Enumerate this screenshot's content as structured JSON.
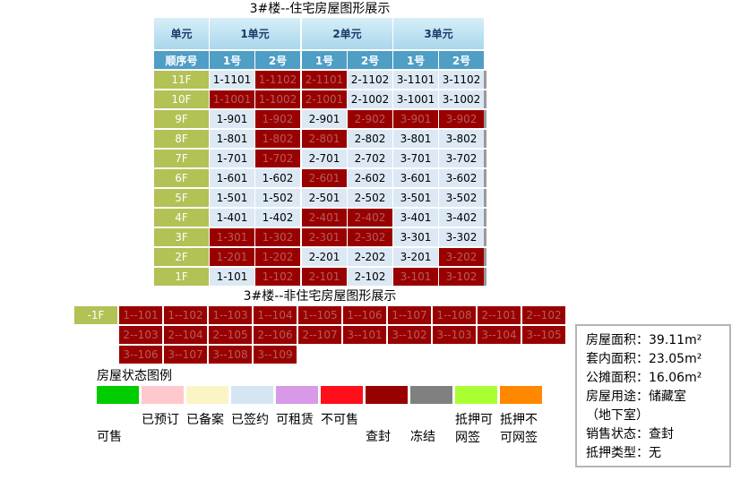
{
  "residential": {
    "title": "3#楼--住宅房屋图形展示",
    "unit_header": "单元",
    "seq_header": "顺序号",
    "units": [
      "1单元",
      "2单元",
      "3单元"
    ],
    "nums": [
      "1号",
      "2号",
      "1号",
      "2号",
      "1号",
      "2号"
    ],
    "rows": [
      {
        "floor": "11F",
        "rooms": [
          [
            "1-1101",
            "sold"
          ],
          [
            "1-1102",
            "seal"
          ],
          [
            "2-1101",
            "seal"
          ],
          [
            "2-1102",
            "sold"
          ],
          [
            "3-1101",
            "sold"
          ],
          [
            "3-1102",
            "sold"
          ]
        ]
      },
      {
        "floor": "10F",
        "rooms": [
          [
            "1-1001",
            "seal"
          ],
          [
            "1-1002",
            "seal"
          ],
          [
            "2-1001",
            "seal"
          ],
          [
            "2-1002",
            "sold"
          ],
          [
            "3-1001",
            "sold"
          ],
          [
            "3-1002",
            "sold"
          ]
        ]
      },
      {
        "floor": "9F",
        "rooms": [
          [
            "1-901",
            "sold"
          ],
          [
            "1-902",
            "seal"
          ],
          [
            "2-901",
            "sold"
          ],
          [
            "2-902",
            "seal"
          ],
          [
            "3-901",
            "seal"
          ],
          [
            "3-902",
            "seal"
          ]
        ]
      },
      {
        "floor": "8F",
        "rooms": [
          [
            "1-801",
            "sold"
          ],
          [
            "1-802",
            "seal"
          ],
          [
            "2-801",
            "seal"
          ],
          [
            "2-802",
            "sold"
          ],
          [
            "3-801",
            "sold"
          ],
          [
            "3-802",
            "sold"
          ]
        ]
      },
      {
        "floor": "7F",
        "rooms": [
          [
            "1-701",
            "sold"
          ],
          [
            "1-702",
            "seal"
          ],
          [
            "2-701",
            "sold"
          ],
          [
            "2-702",
            "sold"
          ],
          [
            "3-701",
            "sold"
          ],
          [
            "3-702",
            "sold"
          ]
        ]
      },
      {
        "floor": "6F",
        "rooms": [
          [
            "1-601",
            "sold"
          ],
          [
            "1-602",
            "sold"
          ],
          [
            "2-601",
            "seal"
          ],
          [
            "2-602",
            "sold"
          ],
          [
            "3-601",
            "sold"
          ],
          [
            "3-602",
            "sold"
          ]
        ]
      },
      {
        "floor": "5F",
        "rooms": [
          [
            "1-501",
            "sold"
          ],
          [
            "1-502",
            "sold"
          ],
          [
            "2-501",
            "sold"
          ],
          [
            "2-502",
            "sold"
          ],
          [
            "3-501",
            "sold"
          ],
          [
            "3-502",
            "sold"
          ]
        ]
      },
      {
        "floor": "4F",
        "rooms": [
          [
            "1-401",
            "sold"
          ],
          [
            "1-402",
            "sold"
          ],
          [
            "2-401",
            "seal"
          ],
          [
            "2-402",
            "seal"
          ],
          [
            "3-401",
            "sold"
          ],
          [
            "3-402",
            "sold"
          ]
        ]
      },
      {
        "floor": "3F",
        "rooms": [
          [
            "1-301",
            "seal"
          ],
          [
            "1-302",
            "seal"
          ],
          [
            "2-301",
            "seal"
          ],
          [
            "2-302",
            "seal"
          ],
          [
            "3-301",
            "sold"
          ],
          [
            "3-302",
            "sold"
          ]
        ]
      },
      {
        "floor": "2F",
        "rooms": [
          [
            "1-201",
            "seal"
          ],
          [
            "1-202",
            "seal"
          ],
          [
            "2-201",
            "sold"
          ],
          [
            "2-202",
            "sold"
          ],
          [
            "3-201",
            "sold"
          ],
          [
            "3-202",
            "seal"
          ]
        ]
      },
      {
        "floor": "1F",
        "rooms": [
          [
            "1-101",
            "sold"
          ],
          [
            "1-102",
            "seal"
          ],
          [
            "2-101",
            "seal"
          ],
          [
            "2-102",
            "sold"
          ],
          [
            "3-101",
            "seal"
          ],
          [
            "3-102",
            "seal"
          ]
        ]
      }
    ]
  },
  "nonresidential": {
    "title": "3#楼--非住宅房屋图形展示",
    "floor": "-1F",
    "rooms": [
      "1--101",
      "1--102",
      "1--103",
      "1--104",
      "1--105",
      "1--106",
      "1--107",
      "1--108",
      "2--101",
      "2--102",
      "2--103",
      "2--104",
      "2--105",
      "2--106",
      "2--107",
      "3--101",
      "3--102",
      "3--103",
      "3--104",
      "3--105",
      "3--106",
      "3--107",
      "3--108",
      "3--109"
    ]
  },
  "legend": {
    "title": "房屋状态图例",
    "items": [
      {
        "label": "可售",
        "color": "#00cc00"
      },
      {
        "label": "已预订",
        "color": "#ffc8cc"
      },
      {
        "label": "已备案",
        "color": "#fbf5c6"
      },
      {
        "label": "已签约",
        "color": "#d4e6f4"
      },
      {
        "label": "可租赁",
        "color": "#d89ae8"
      },
      {
        "label": "不可售",
        "color": "#ff0f1a"
      },
      {
        "label": "查封",
        "color": "#990000"
      },
      {
        "label": "冻结",
        "color": "#808080"
      },
      {
        "label": "抵押可网签",
        "color": "#aaff33"
      },
      {
        "label": "抵押不可网签",
        "color": "#ff8800"
      }
    ]
  },
  "info": {
    "area": "房屋面积：39.11m²",
    "inner_area": "套内面积：23.05m²",
    "shared_area": "公摊面积：16.06m²",
    "usage": "房屋用途：储藏室",
    "usage_note": "（地下室）",
    "sale_status": "销售状态：查封",
    "mortgage_type": "抵押类型：无"
  }
}
